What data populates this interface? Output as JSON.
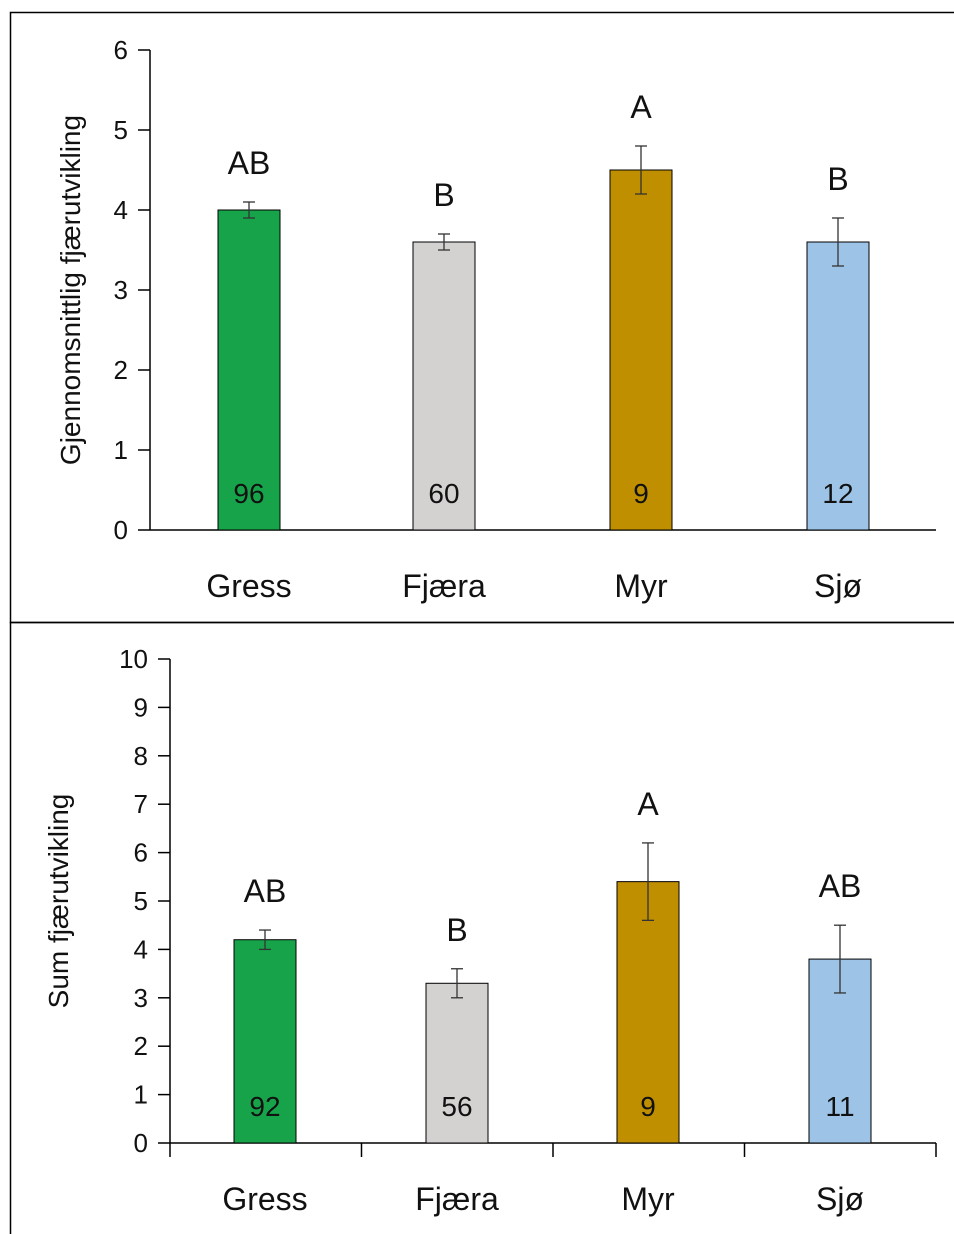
{
  "chart_data": [
    {
      "type": "bar",
      "categories": [
        "Gress",
        "Fjæra",
        "Myr",
        "Sjø"
      ],
      "values": [
        4.0,
        3.6,
        4.5,
        3.6
      ],
      "errors": [
        0.1,
        0.1,
        0.3,
        0.3
      ],
      "significance_letters": [
        "AB",
        "B",
        "A",
        "B"
      ],
      "n_labels": [
        "96",
        "60",
        "9",
        "12"
      ],
      "colors": [
        "#17a34a",
        "#d4d1d1",
        "#bf8f00",
        "#9dc3e6"
      ],
      "ylabel": "Gjennomsnittlig fjærutvikling",
      "xlabel": "",
      "ylim": [
        0,
        6
      ],
      "yticks": [
        "0",
        "1",
        "2",
        "3",
        "4",
        "5",
        "6"
      ],
      "grid": false,
      "legend": "none"
    },
    {
      "type": "bar",
      "categories": [
        "Gress",
        "Fjæra",
        "Myr",
        "Sjø"
      ],
      "values": [
        4.2,
        3.3,
        5.4,
        3.8
      ],
      "errors": [
        0.2,
        0.3,
        0.8,
        0.7
      ],
      "significance_letters": [
        "AB",
        "B",
        "A",
        "AB"
      ],
      "n_labels": [
        "92",
        "56",
        "9",
        "11"
      ],
      "colors": [
        "#17a34a",
        "#d4d1d1",
        "#bf8f00",
        "#9dc3e6"
      ],
      "ylabel": "Sum fjærutvikling",
      "xlabel": "",
      "ylim": [
        0,
        10
      ],
      "yticks": [
        "0",
        "1",
        "2",
        "3",
        "4",
        "5",
        "6",
        "7",
        "8",
        "9",
        "10"
      ],
      "grid": false,
      "legend": "none"
    }
  ]
}
